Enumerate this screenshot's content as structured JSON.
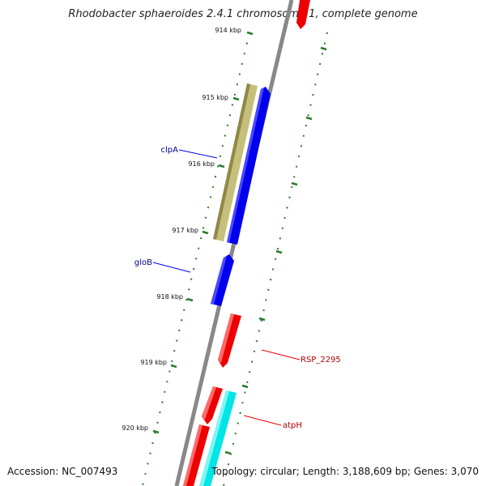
{
  "title": "Rhodobacter sphaeroides 2.4.1 chromosome 1, complete genome",
  "footer": {
    "accession": "Accession: NC_007493",
    "summary": "Topology: circular; Length: 3,188,609 bp; Genes: 3,070"
  },
  "colors": {
    "backbone": "#888888",
    "tick": "#2a7a2a",
    "cds_plus": "#0000ee",
    "cds_minus": "#ee0000",
    "rna": "#00e5e5",
    "other": "#b8b070",
    "label_blue": "#00008b",
    "label_red": "#b00000"
  },
  "ticks": [
    {
      "label": "914 kbp",
      "kbp": 914
    },
    {
      "label": "915 kbp",
      "kbp": 915
    },
    {
      "label": "916 kbp",
      "kbp": 916
    },
    {
      "label": "917 kbp",
      "kbp": 917
    },
    {
      "label": "918 kbp",
      "kbp": 918
    },
    {
      "label": "919 kbp",
      "kbp": 919
    },
    {
      "label": "920 kbp",
      "kbp": 920
    }
  ],
  "genes": [
    {
      "name": "clpA",
      "strand": "+",
      "label": "clpA",
      "start_kbp": 914.85,
      "end_kbp": 917.05
    },
    {
      "name": "gloB",
      "strand": "+",
      "label": "gloB",
      "start_kbp": 917.25,
      "end_kbp": 918.05
    },
    {
      "name": "RSP_2295",
      "strand": "-",
      "label": "RSP_2295",
      "start_kbp": 918.25,
      "end_kbp": 919.05
    },
    {
      "name": "atpH",
      "strand": "-",
      "label": "atpH",
      "start_kbp": 919.5,
      "end_kbp": 920.05
    }
  ]
}
